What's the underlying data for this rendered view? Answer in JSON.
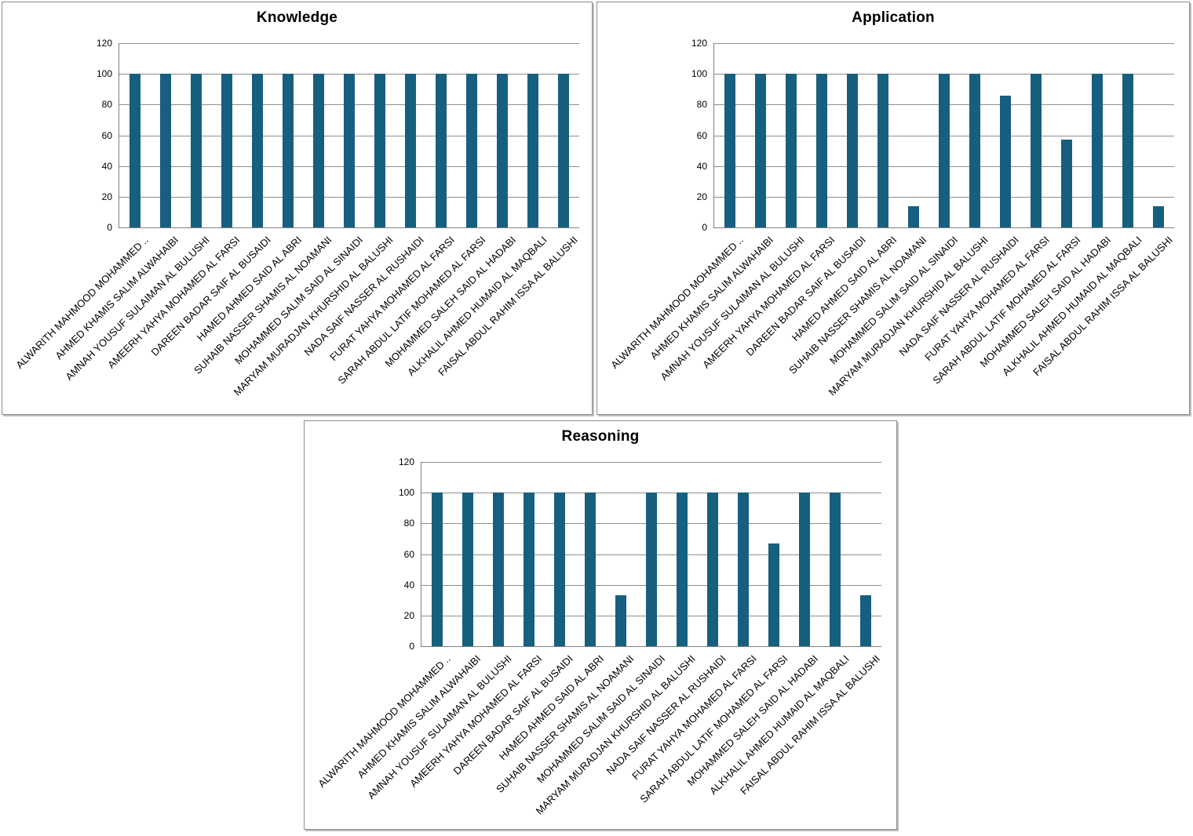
{
  "style": {
    "bar_color": "#175F7E",
    "grid_color": "#8f8f8f",
    "axis_color": "#808080",
    "panel_border_color": "#8e8e8e",
    "background": "#ffffff",
    "text_color": "#000000"
  },
  "chart_data": [
    {
      "type": "bar",
      "title": "Knowledge",
      "xlabel": "",
      "ylabel": "",
      "ylim": [
        0,
        120
      ],
      "yticks": [
        120,
        100,
        80,
        60,
        40,
        20,
        0
      ],
      "grid": true,
      "legend_position": "none",
      "categories": [
        "ALWARITH  MAHMOOD MOHAMMED ..",
        "AHMED KHAMIS SALIM ALWAHAIBI",
        "AMNAH YOUSUF SULAIMAN AL BULUSHI",
        "AMEERH YAHYA MOHAMED  AL FARSI",
        "DAREEN BADAR SAIF AL BUSAIDI",
        "HAMED AHMED SAID AL ABRI",
        "SUHAIB NASSER SHAMIS AL NOAMANI",
        "MOHAMMED SALIM SAID AL SINAIDI",
        "MARYAM MURADJAN KHURSHID AL BALUSHI",
        "NADA SAIF NASSER AL RUSHAIDI",
        "FURAT YAHYA MOHAMED  AL FARSI",
        "SARAH ABDUL LATIF  MOHAMED AL FARSI",
        "MOHAMMED SALEH SAID AL HADABI",
        "ALKHALIL AHMED HUMAID AL MAQBALI",
        "FAISAL ABDUL RAHIM ISSA AL BALUSHI"
      ],
      "values": [
        100,
        100,
        100,
        100,
        100,
        100,
        100,
        100,
        100,
        100,
        100,
        100,
        100,
        100,
        100
      ]
    },
    {
      "type": "bar",
      "title": "Application",
      "xlabel": "",
      "ylabel": "",
      "ylim": [
        0,
        120
      ],
      "yticks": [
        120,
        100,
        80,
        60,
        40,
        20,
        0
      ],
      "grid": true,
      "legend_position": "none",
      "categories": [
        "ALWARITH  MAHMOOD MOHAMMED ..",
        "AHMED KHAMIS SALIM ALWAHAIBI",
        "AMNAH YOUSUF SULAIMAN AL BULUSHI",
        "AMEERH YAHYA MOHAMED  AL FARSI",
        "DAREEN BADAR SAIF AL BUSAIDI",
        "HAMED AHMED SAID AL ABRI",
        "SUHAIB NASSER SHAMIS AL NOAMANI",
        "MOHAMMED SALIM SAID AL SINAIDI",
        "MARYAM MURADJAN KHURSHID AL BALUSHI",
        "NADA SAIF NASSER AL RUSHAIDI",
        "FURAT YAHYA MOHAMED  AL FARSI",
        "SARAH ABDUL LATIF  MOHAMED AL FARSI",
        "MOHAMMED SALEH SAID AL HADABI",
        "ALKHALIL AHMED HUMAID AL MAQBALI",
        "FAISAL ABDUL RAHIM ISSA AL BALUSHI"
      ],
      "values": [
        100,
        100,
        100,
        100,
        100,
        100,
        14,
        100,
        100,
        86,
        100,
        57,
        100,
        100,
        14
      ]
    },
    {
      "type": "bar",
      "title": "Reasoning",
      "xlabel": "",
      "ylabel": "",
      "ylim": [
        0,
        120
      ],
      "yticks": [
        120,
        100,
        80,
        60,
        40,
        20,
        0
      ],
      "grid": true,
      "legend_position": "none",
      "categories": [
        "ALWARITH  MAHMOOD MOHAMMED ..",
        "AHMED KHAMIS SALIM ALWAHAIBI",
        "AMNAH YOUSUF SULAIMAN AL BULUSHI",
        "AMEERH YAHYA MOHAMED  AL FARSI",
        "DAREEN BADAR SAIF AL BUSAIDI",
        "HAMED AHMED SAID AL ABRI",
        "SUHAIB NASSER SHAMIS AL NOAMANI",
        "MOHAMMED SALIM SAID AL SINAIDI",
        "MARYAM MURADJAN KHURSHID AL BALUSHI",
        "NADA SAIF NASSER AL RUSHAIDI",
        "FURAT YAHYA MOHAMED  AL FARSI",
        "SARAH ABDUL LATIF  MOHAMED AL FARSI",
        "MOHAMMED SALEH SAID AL HADABI",
        "ALKHALIL AHMED HUMAID AL MAQBALI",
        "FAISAL ABDUL RAHIM ISSA AL BALUSHI"
      ],
      "values": [
        100,
        100,
        100,
        100,
        100,
        100,
        33,
        100,
        100,
        100,
        100,
        67,
        100,
        100,
        33
      ]
    }
  ]
}
